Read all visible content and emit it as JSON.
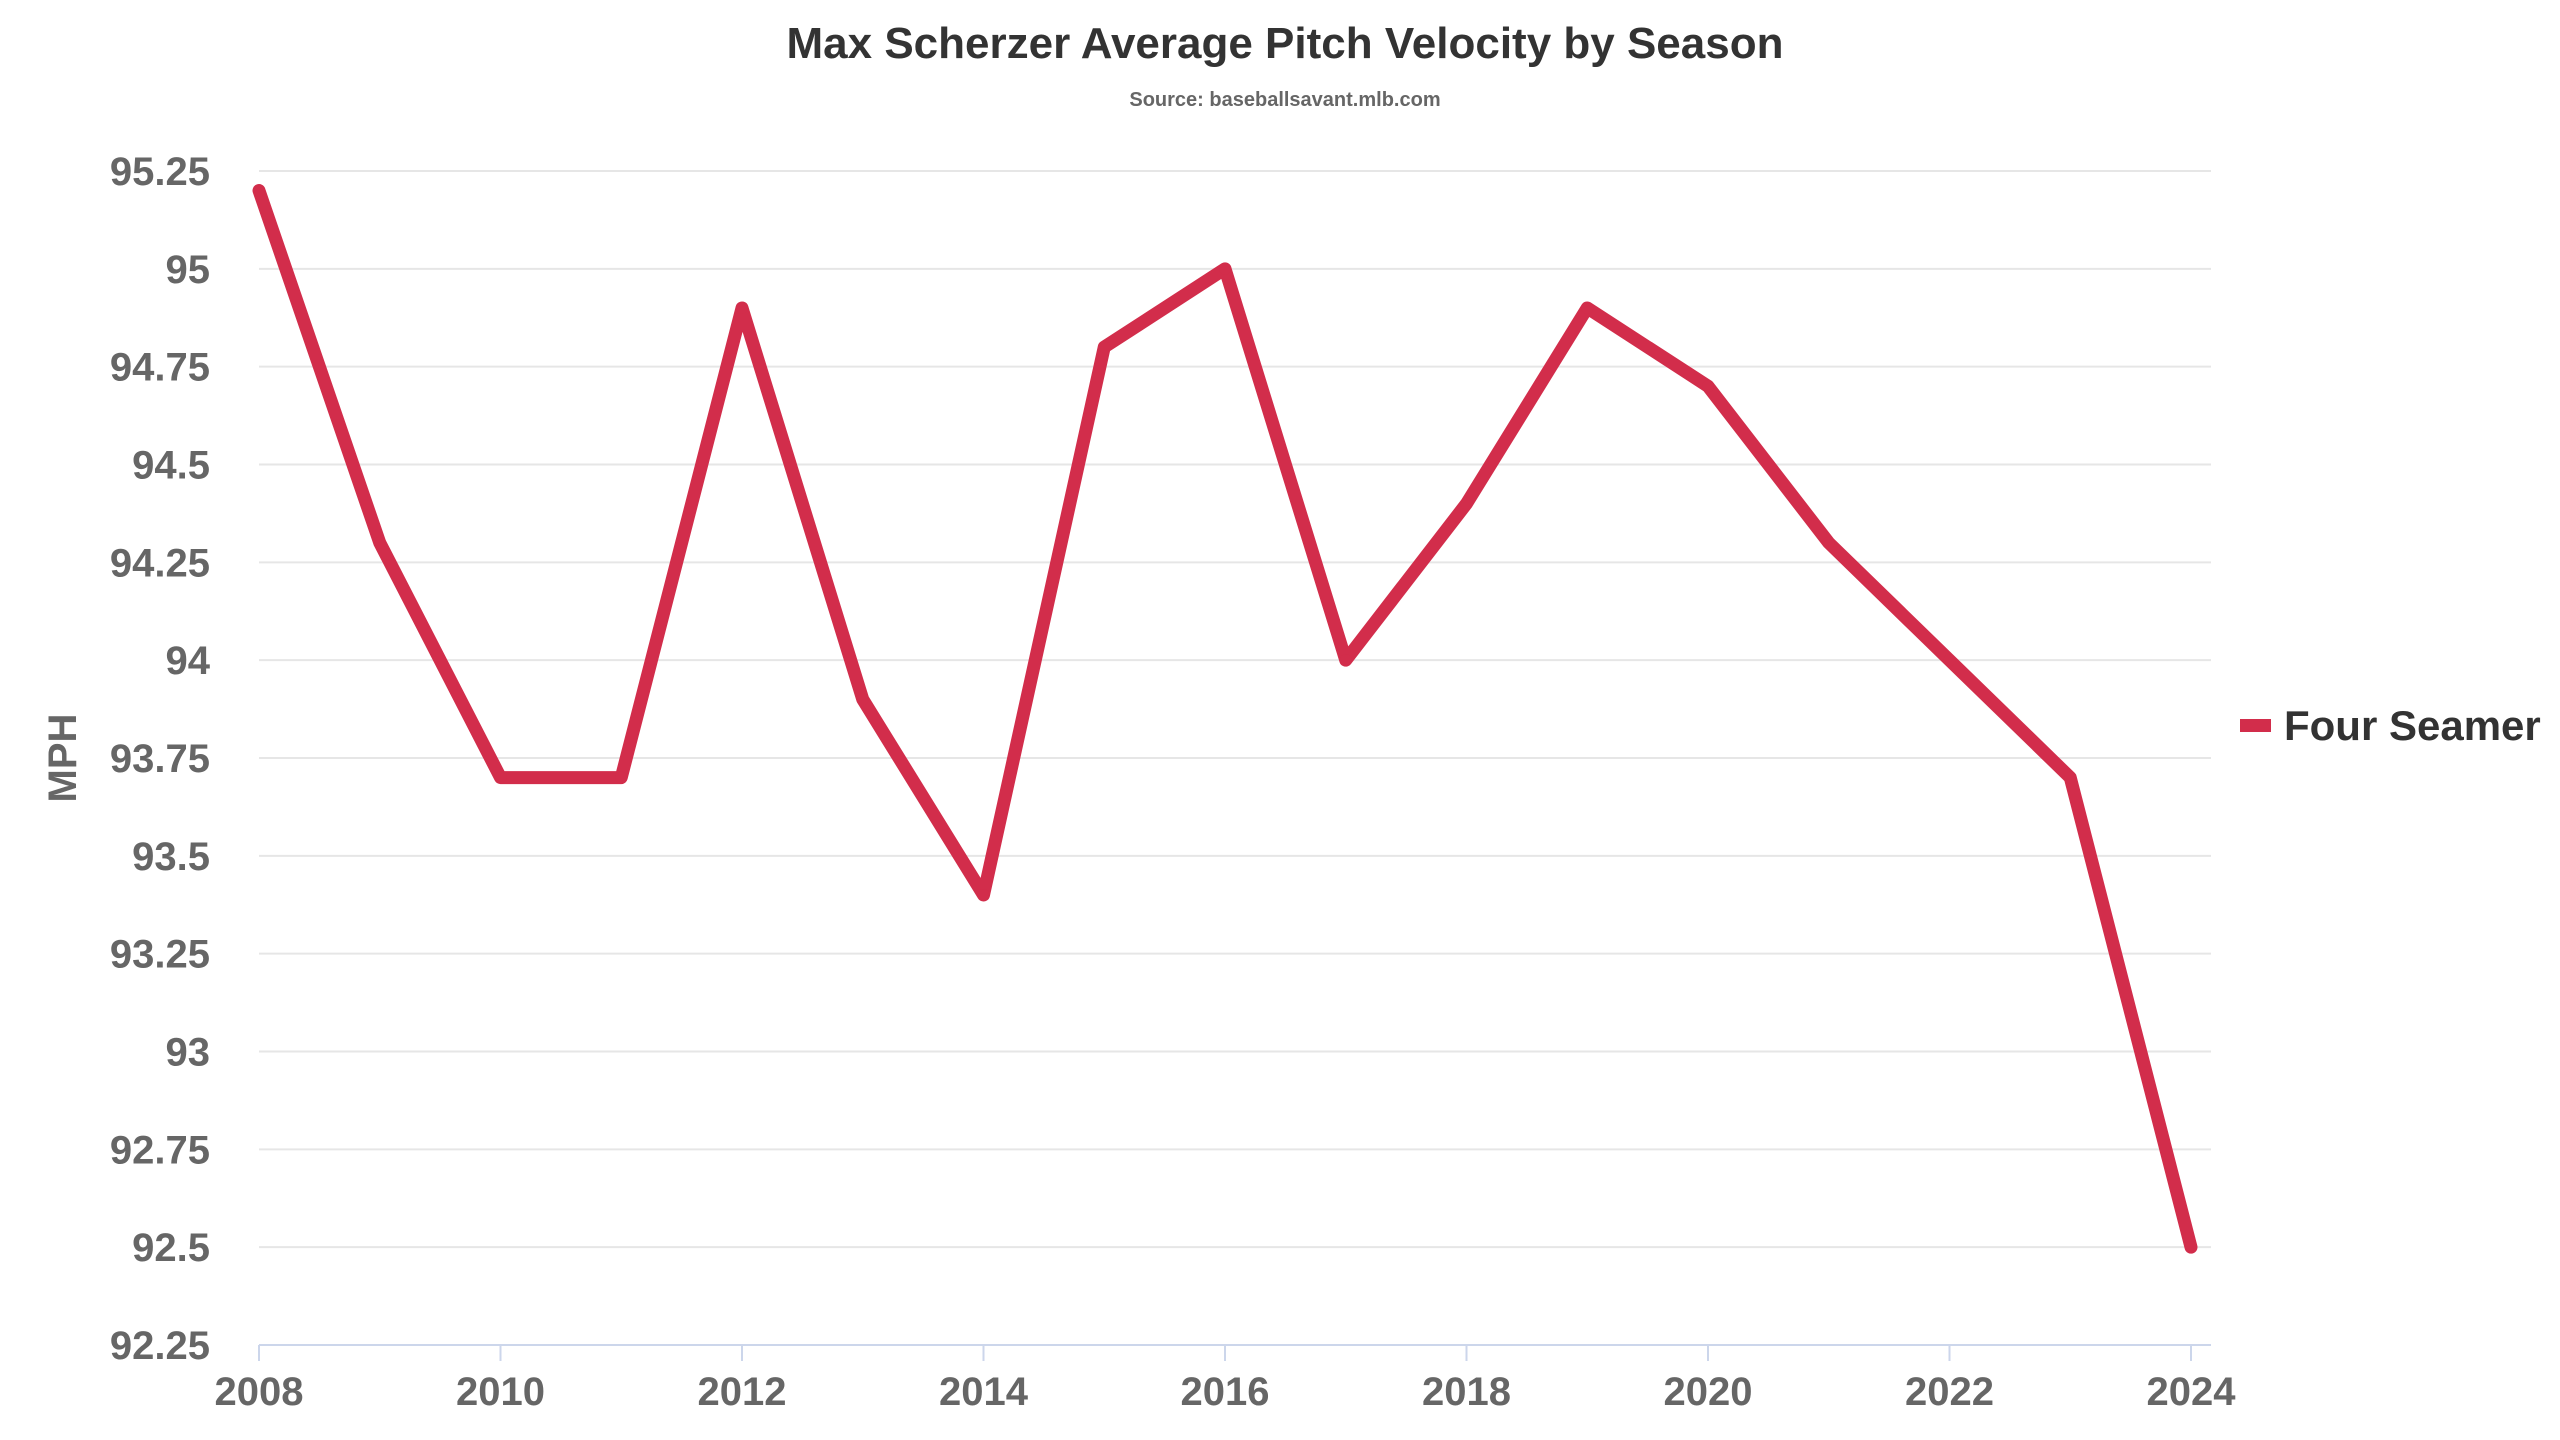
{
  "chart_data": {
    "type": "line",
    "title": "Max Scherzer Average Pitch Velocity by Season",
    "subtitle": "Source: baseballsavant.mlb.com",
    "xlabel": "",
    "ylabel": "MPH",
    "x": [
      2008,
      2009,
      2010,
      2011,
      2012,
      2013,
      2014,
      2015,
      2016,
      2017,
      2018,
      2019,
      2020,
      2021,
      2022,
      2023,
      2024
    ],
    "xticks": [
      "2008",
      "2010",
      "2012",
      "2014",
      "2016",
      "2018",
      "2020",
      "2022",
      "2024"
    ],
    "yticks": [
      "92.25",
      "92.5",
      "92.75",
      "93",
      "93.25",
      "93.5",
      "93.75",
      "94",
      "94.25",
      "94.5",
      "94.75",
      "95",
      "95.25"
    ],
    "ylim": [
      92.25,
      95.25
    ],
    "xlim": [
      2008,
      2024
    ],
    "grid": true,
    "legend_position": "right",
    "series": [
      {
        "name": "Four Seamer",
        "color": "#d22d4b",
        "values": [
          95.2,
          94.3,
          93.7,
          93.7,
          94.9,
          93.9,
          93.4,
          94.8,
          95.0,
          94.0,
          94.4,
          94.9,
          94.7,
          94.3,
          94.0,
          93.7,
          92.5
        ]
      }
    ]
  }
}
